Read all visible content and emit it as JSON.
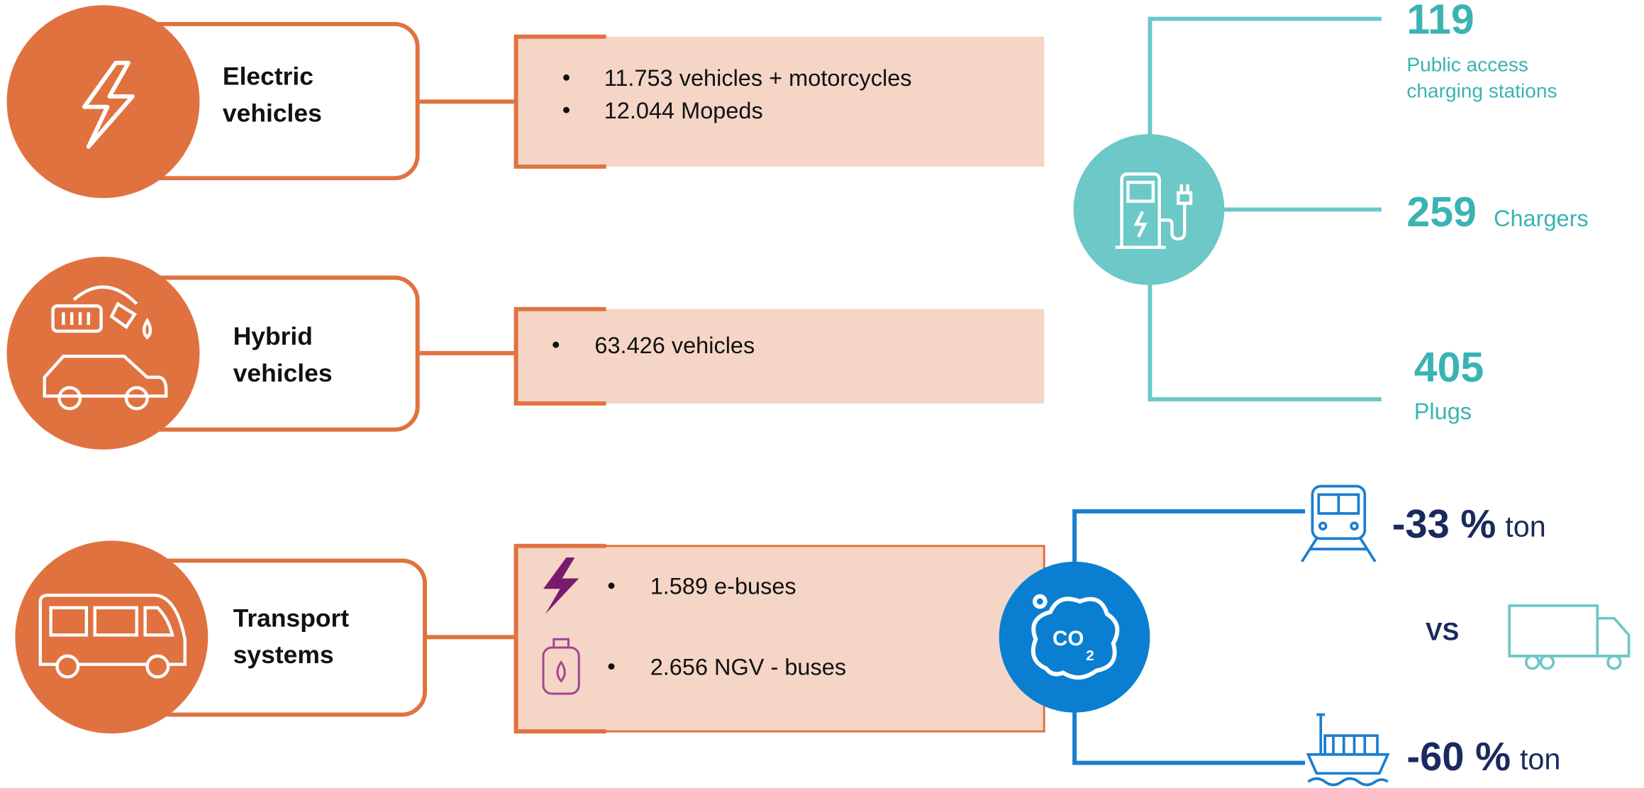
{
  "rows": [
    {
      "label": [
        "Electric",
        "vehicles"
      ],
      "items": [
        "11.753 vehicles + motorcycles",
        "12.044 Mopeds"
      ]
    },
    {
      "label": [
        "Hybrid",
        "vehicles"
      ],
      "items": [
        "63.426 vehicles"
      ]
    },
    {
      "label": [
        "Transport",
        "systems"
      ],
      "items": [
        "1.589 e-buses",
        "2.656 NGV - buses"
      ]
    }
  ],
  "charging": {
    "stations": {
      "value": "119",
      "label": [
        "Public access",
        "charging stations"
      ]
    },
    "chargers": {
      "value": "259",
      "label": "Chargers"
    },
    "plugs": {
      "value": "405",
      "label": "Plugs"
    }
  },
  "emissions": {
    "rail": {
      "value": "-33 %",
      "unit": "ton"
    },
    "comparison": "VS",
    "sea": {
      "value": "-60 %",
      "unit": "ton"
    }
  }
}
